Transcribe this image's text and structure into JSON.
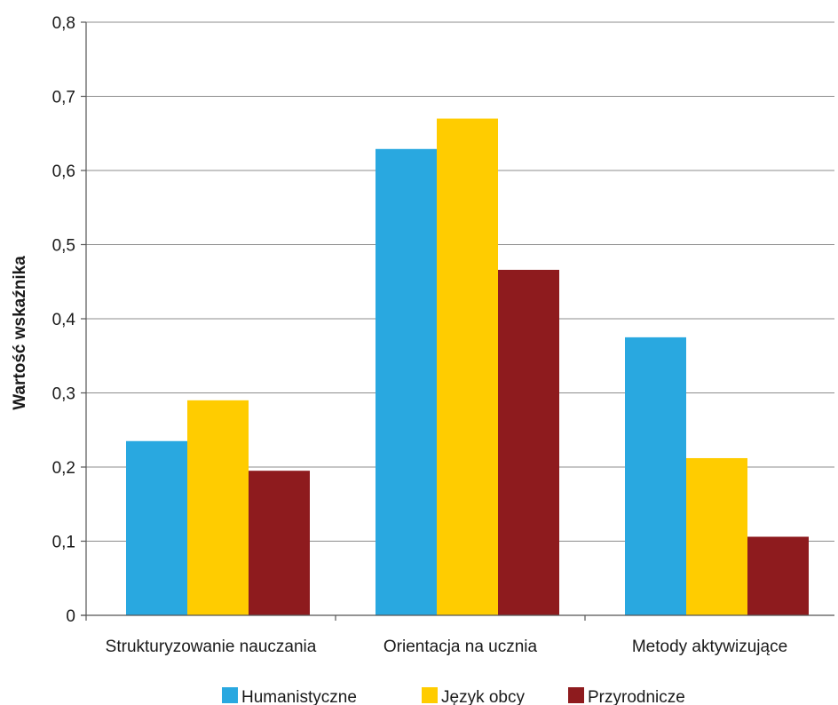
{
  "chart_data": {
    "type": "bar",
    "categories": [
      "Strukturyzowanie nauczania",
      "Orientacja na ucznia",
      "Metody aktywizujące"
    ],
    "series": [
      {
        "name": "Humanistyczne",
        "color": "#29A8E0",
        "values": [
          0.235,
          0.629,
          0.375
        ]
      },
      {
        "name": "Język obcy",
        "color": "#FFCC00",
        "values": [
          0.29,
          0.67,
          0.212
        ]
      },
      {
        "name": "Przyrodnicze",
        "color": "#8E1B1E",
        "values": [
          0.195,
          0.466,
          0.106
        ]
      }
    ],
    "ylabel": "Wartość wskaźnika",
    "ylim": [
      0,
      0.8
    ],
    "yticks": [
      0,
      0.1,
      0.2,
      0.3,
      0.4,
      0.5,
      0.6,
      0.7,
      0.8
    ],
    "ytick_labels": [
      "0",
      "0,1",
      "0,2",
      "0,3",
      "0,4",
      "0,5",
      "0,6",
      "0,7",
      "0,8"
    ],
    "grid": true,
    "legend_position": "bottom"
  }
}
